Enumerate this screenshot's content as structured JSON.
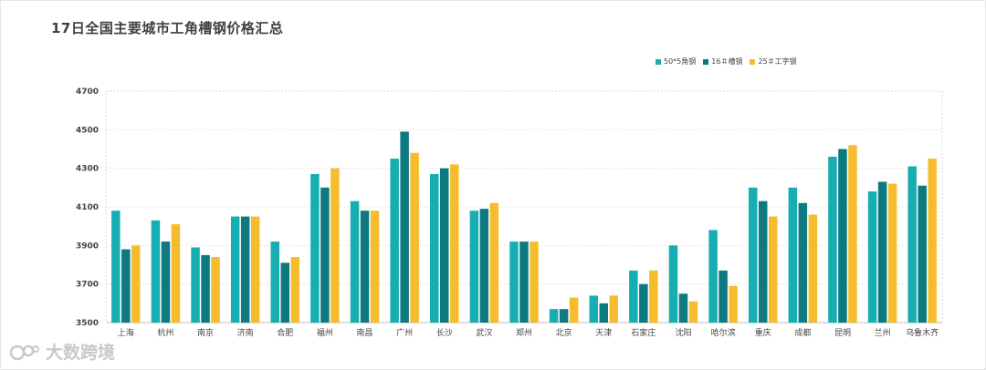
{
  "title": "17日全国主要城市工角槽钢价格汇总",
  "watermark": {
    "text": "大数跨境",
    "icon": "logo-icon"
  },
  "chart_data": {
    "type": "bar",
    "title": "17日全国主要城市工角槽钢价格汇总",
    "xlabel": "",
    "ylabel": "",
    "ylim": [
      3500,
      4700
    ],
    "yticks": [
      3500,
      3700,
      3900,
      4100,
      4300,
      4500,
      4700
    ],
    "grid": true,
    "legend_position": "top-right",
    "categories": [
      "上海",
      "杭州",
      "南京",
      "济南",
      "合肥",
      "福州",
      "南昌",
      "广州",
      "长沙",
      "武汉",
      "郑州",
      "北京",
      "天津",
      "石家庄",
      "沈阳",
      "哈尔滨",
      "重庆",
      "成都",
      "昆明",
      "兰州",
      "乌鲁木齐"
    ],
    "series": [
      {
        "name": "50*5角钢",
        "color": "#17aeb2",
        "values": [
          4080,
          4030,
          3890,
          4050,
          3920,
          4270,
          4130,
          4350,
          4270,
          4080,
          3920,
          3570,
          3640,
          3770,
          3900,
          3980,
          4200,
          4200,
          4360,
          4180,
          4310
        ]
      },
      {
        "name": "16＃槽钢",
        "color": "#0c7a80",
        "values": [
          3880,
          3920,
          3850,
          4050,
          3810,
          4200,
          4080,
          4490,
          4300,
          4090,
          3920,
          3570,
          3600,
          3700,
          3650,
          3770,
          4130,
          4120,
          4400,
          4230,
          4210
        ]
      },
      {
        "name": "25＃工字钢",
        "color": "#f5bd2e",
        "values": [
          3900,
          4010,
          3840,
          4050,
          3840,
          4300,
          4080,
          4380,
          4320,
          4120,
          3920,
          3630,
          3640,
          3770,
          3610,
          3690,
          4050,
          4060,
          4420,
          4220,
          4350
        ]
      }
    ]
  }
}
